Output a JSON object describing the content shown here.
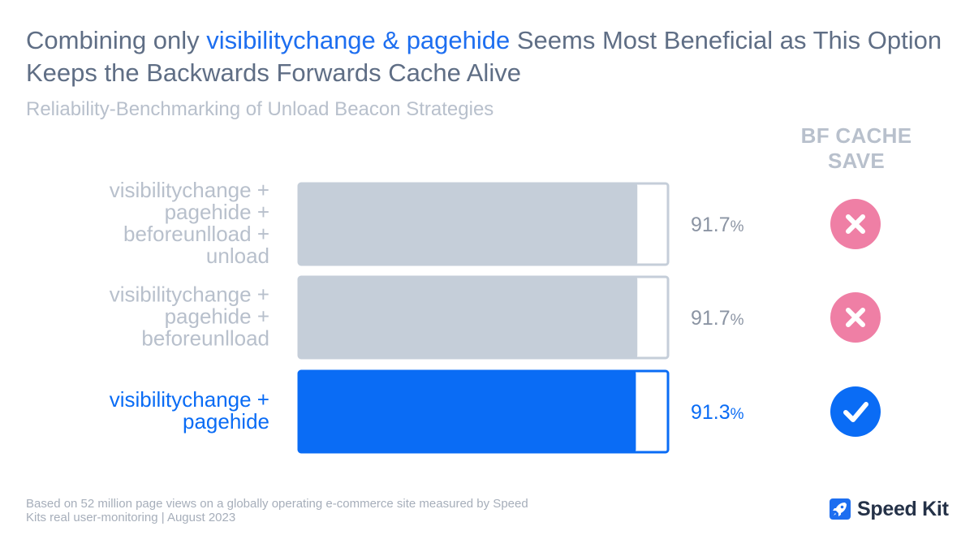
{
  "title": {
    "part1": "Combining only ",
    "highlight": "visibilitychange & pagehide",
    "part2": " Seems Most Beneficial as This Option Keeps the Backwards Forwards Cache Alive"
  },
  "subtitle": "Reliability-Benchmarking of Unload Beacon Strategies",
  "column_header": [
    "BF CACHE",
    "SAVE"
  ],
  "colors": {
    "gray_bar": "#c5ced9",
    "gray_text": "#b8c0cc",
    "accent_blue": "#0a6cf5",
    "cross_pink": "#ef7fa5",
    "value_gray": "#8b94a3"
  },
  "chart_data": {
    "type": "bar",
    "orientation": "horizontal",
    "title": "Reliability-Benchmarking of Unload Beacon Strategies",
    "categories": [
      [
        "visibilitychange +",
        "pagehide +",
        "beforeunlload +",
        "unload"
      ],
      [
        "visibilitychange +",
        "pagehide +",
        "beforeunlload"
      ],
      [
        "visibilitychange +",
        "pagehide"
      ]
    ],
    "values": [
      91.7,
      91.7,
      91.3
    ],
    "value_labels": [
      "91.7",
      "91.7",
      "91.3"
    ],
    "unit": "%",
    "bf_cache_save": [
      false,
      false,
      true
    ],
    "bf_cache_icons": [
      "cross-icon",
      "cross-icon",
      "check-icon"
    ],
    "highlighted_index": 2,
    "xlim": [
      0,
      100
    ]
  },
  "footnote": "Based on 52 million page views on a globally operating e-commerce site measured by Speed Kits real user-monitoring | August 2023",
  "brand": {
    "name": "Speed Kit",
    "icon": "rocket-icon"
  }
}
